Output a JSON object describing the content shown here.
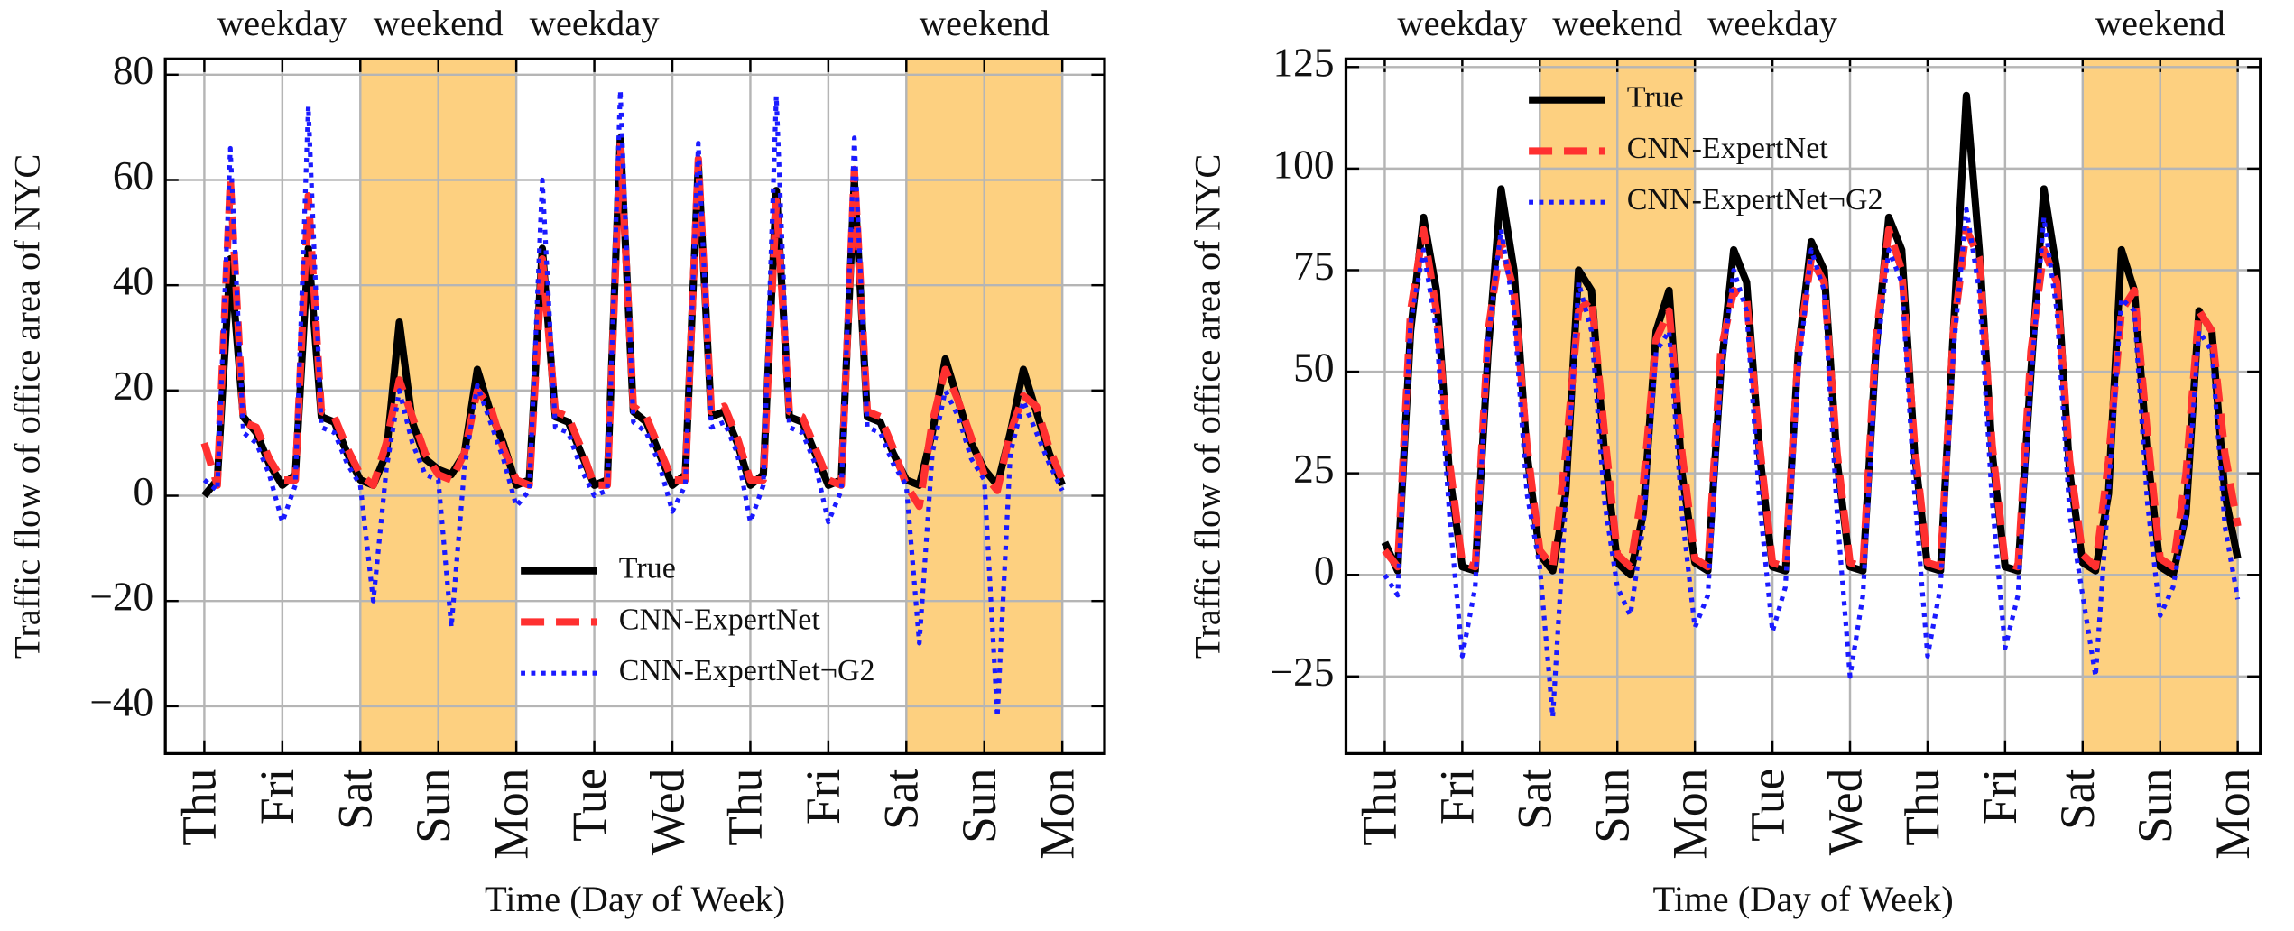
{
  "chart_data": [
    {
      "type": "line",
      "xlabel": "Time (Day of Week)",
      "ylabel": "Traffic flow of office area of NYC",
      "x": [
        0,
        4,
        8,
        12,
        16,
        20,
        24,
        28,
        32,
        36,
        40,
        44,
        48,
        52,
        56,
        60,
        64,
        68,
        72,
        76,
        80,
        84,
        88,
        92,
        96,
        100,
        104,
        108,
        112,
        116,
        120,
        124,
        128,
        132,
        136,
        140,
        144,
        148,
        152,
        156,
        160,
        164,
        168,
        172,
        176,
        180,
        184,
        188,
        192,
        196,
        200,
        204,
        208,
        212,
        216,
        220,
        224,
        228,
        232,
        236,
        240,
        244,
        248,
        252,
        256,
        260,
        264
      ],
      "xlim": [
        -12,
        277
      ],
      "xticks": [
        {
          "value": 0,
          "label": "Thu"
        },
        {
          "value": 24,
          "label": "Fri"
        },
        {
          "value": 48,
          "label": "Sat"
        },
        {
          "value": 72,
          "label": "Sun"
        },
        {
          "value": 96,
          "label": "Mon"
        },
        {
          "value": 120,
          "label": "Tue"
        },
        {
          "value": 144,
          "label": "Wed"
        },
        {
          "value": 168,
          "label": "Thu"
        },
        {
          "value": 192,
          "label": "Fri"
        },
        {
          "value": 216,
          "label": "Sat"
        },
        {
          "value": 240,
          "label": "Sun"
        },
        {
          "value": 264,
          "label": "Mon"
        }
      ],
      "ylim": [
        -49,
        83
      ],
      "yticks": [
        {
          "value": -40,
          "label": "−40"
        },
        {
          "value": -20,
          "label": "−20"
        },
        0,
        20,
        40,
        60,
        80
      ],
      "grid": true,
      "legend": "lower center",
      "shade_color": "#fdd080",
      "regions": [
        {
          "start": 0,
          "end": 48,
          "label": "weekday",
          "shaded": false
        },
        {
          "start": 48,
          "end": 96,
          "label": "weekend",
          "shaded": true
        },
        {
          "start": 96,
          "end": 216,
          "label": "weekday",
          "shaded": false
        },
        {
          "start": 216,
          "end": 264,
          "label": "weekend",
          "shaded": true
        }
      ],
      "series": [
        {
          "name": "True",
          "color": "#000000",
          "linestyle": "solid",
          "values": [
            0,
            3,
            45,
            15,
            12,
            6,
            2,
            4,
            47,
            15,
            14,
            8,
            3,
            2,
            8,
            33,
            14,
            7,
            5,
            4,
            8,
            24,
            16,
            10,
            2,
            3,
            47,
            15,
            14,
            8,
            2,
            3,
            68,
            16,
            14,
            8,
            2,
            4,
            63,
            15,
            16,
            10,
            2,
            4,
            58,
            15,
            14,
            8,
            2,
            3,
            60,
            15,
            14,
            8,
            3,
            2,
            12,
            26,
            18,
            10,
            5,
            2,
            12,
            24,
            16,
            8,
            2
          ]
        },
        {
          "name": "CNN-ExpertNet",
          "color": "#ff3030",
          "linestyle": "dashed",
          "values": [
            10,
            2,
            60,
            14,
            13,
            7,
            3,
            3,
            57,
            16,
            15,
            9,
            4,
            2,
            10,
            22,
            15,
            8,
            4,
            3,
            8,
            20,
            17,
            9,
            3,
            2,
            45,
            16,
            15,
            9,
            2,
            2,
            67,
            17,
            15,
            9,
            3,
            3,
            64,
            16,
            17,
            11,
            3,
            3,
            56,
            16,
            15,
            9,
            3,
            2,
            62,
            16,
            15,
            9,
            2,
            -2,
            14,
            24,
            18,
            11,
            4,
            1,
            12,
            19,
            17,
            9,
            3
          ]
        },
        {
          "name": "CNN-ExpertNet¬G2",
          "color": "#1a1aff",
          "linestyle": "dotted",
          "values": [
            3,
            1,
            66,
            12,
            10,
            4,
            -5,
            2,
            74,
            13,
            12,
            6,
            2,
            -20,
            5,
            20,
            10,
            4,
            3,
            -25,
            5,
            21,
            14,
            7,
            -2,
            1,
            60,
            13,
            12,
            5,
            0,
            1,
            77,
            14,
            12,
            6,
            -3,
            2,
            67,
            13,
            14,
            8,
            -5,
            2,
            76,
            13,
            12,
            6,
            -5,
            1,
            68,
            13,
            12,
            6,
            2,
            -28,
            8,
            20,
            15,
            7,
            3,
            -42,
            8,
            18,
            12,
            6,
            1
          ]
        }
      ]
    },
    {
      "type": "line",
      "xlabel": "Time (Day of Week)",
      "ylabel": "Traffic flow of office area of NYC",
      "x": [
        0,
        4,
        8,
        12,
        16,
        20,
        24,
        28,
        32,
        36,
        40,
        44,
        48,
        52,
        56,
        60,
        64,
        68,
        72,
        76,
        80,
        84,
        88,
        92,
        96,
        100,
        104,
        108,
        112,
        116,
        120,
        124,
        128,
        132,
        136,
        140,
        144,
        148,
        152,
        156,
        160,
        164,
        168,
        172,
        176,
        180,
        184,
        188,
        192,
        196,
        200,
        204,
        208,
        212,
        216,
        220,
        224,
        228,
        232,
        236,
        240,
        244,
        248,
        252,
        256,
        260,
        264
      ],
      "xlim": [
        -12,
        271
      ],
      "xticks": [
        {
          "value": 0,
          "label": "Thu"
        },
        {
          "value": 24,
          "label": "Fri"
        },
        {
          "value": 48,
          "label": "Sat"
        },
        {
          "value": 72,
          "label": "Sun"
        },
        {
          "value": 96,
          "label": "Mon"
        },
        {
          "value": 120,
          "label": "Tue"
        },
        {
          "value": 144,
          "label": "Wed"
        },
        {
          "value": 168,
          "label": "Thu"
        },
        {
          "value": 192,
          "label": "Fri"
        },
        {
          "value": 216,
          "label": "Sat"
        },
        {
          "value": 240,
          "label": "Sun"
        },
        {
          "value": 264,
          "label": "Mon"
        }
      ],
      "ylim": [
        -44,
        127
      ],
      "yticks": [
        {
          "value": -25,
          "label": "−25"
        },
        0,
        25,
        50,
        75,
        100,
        125
      ],
      "grid": true,
      "legend": "upper left",
      "shade_color": "#fdd080",
      "regions": [
        {
          "start": 0,
          "end": 48,
          "label": "weekday",
          "shaded": false
        },
        {
          "start": 48,
          "end": 96,
          "label": "weekend",
          "shaded": true
        },
        {
          "start": 96,
          "end": 216,
          "label": "weekday",
          "shaded": false
        },
        {
          "start": 216,
          "end": 264,
          "label": "weekend",
          "shaded": true
        }
      ],
      "series": [
        {
          "name": "True",
          "color": "#000000",
          "linestyle": "solid",
          "values": [
            8,
            1,
            60,
            88,
            70,
            25,
            2,
            1,
            55,
            95,
            75,
            30,
            5,
            1,
            20,
            75,
            70,
            30,
            3,
            0,
            15,
            60,
            70,
            25,
            3,
            1,
            50,
            80,
            72,
            30,
            2,
            1,
            55,
            82,
            75,
            28,
            2,
            1,
            55,
            88,
            80,
            30,
            2,
            1,
            60,
            118,
            80,
            30,
            2,
            1,
            50,
            95,
            75,
            25,
            3,
            1,
            20,
            80,
            70,
            30,
            2,
            0,
            15,
            65,
            60,
            20,
            4
          ]
        },
        {
          "name": "CNN-ExpertNet",
          "color": "#ff3030",
          "linestyle": "dashed",
          "values": [
            6,
            2,
            65,
            85,
            65,
            28,
            3,
            2,
            60,
            82,
            70,
            32,
            6,
            2,
            30,
            65,
            68,
            35,
            5,
            2,
            22,
            58,
            65,
            30,
            4,
            2,
            55,
            70,
            68,
            32,
            3,
            2,
            55,
            78,
            72,
            30,
            3,
            2,
            58,
            85,
            75,
            32,
            3,
            2,
            60,
            85,
            78,
            32,
            3,
            2,
            55,
            80,
            72,
            28,
            5,
            2,
            28,
            65,
            70,
            35,
            4,
            2,
            25,
            65,
            60,
            30,
            12
          ]
        },
        {
          "name": "CNN-ExpertNet¬G2",
          "color": "#1a1aff",
          "linestyle": "dotted",
          "values": [
            0,
            -5,
            62,
            80,
            60,
            15,
            -20,
            -3,
            58,
            85,
            65,
            20,
            2,
            -35,
            18,
            72,
            60,
            18,
            -3,
            -10,
            12,
            55,
            60,
            15,
            -13,
            -5,
            48,
            75,
            65,
            18,
            -14,
            -3,
            50,
            80,
            70,
            15,
            -25,
            -5,
            52,
            80,
            72,
            20,
            -20,
            -3,
            55,
            90,
            70,
            18,
            -18,
            -5,
            48,
            88,
            65,
            15,
            -5,
            -25,
            20,
            68,
            65,
            18,
            -10,
            -3,
            15,
            60,
            55,
            12,
            -6
          ]
        }
      ]
    }
  ]
}
